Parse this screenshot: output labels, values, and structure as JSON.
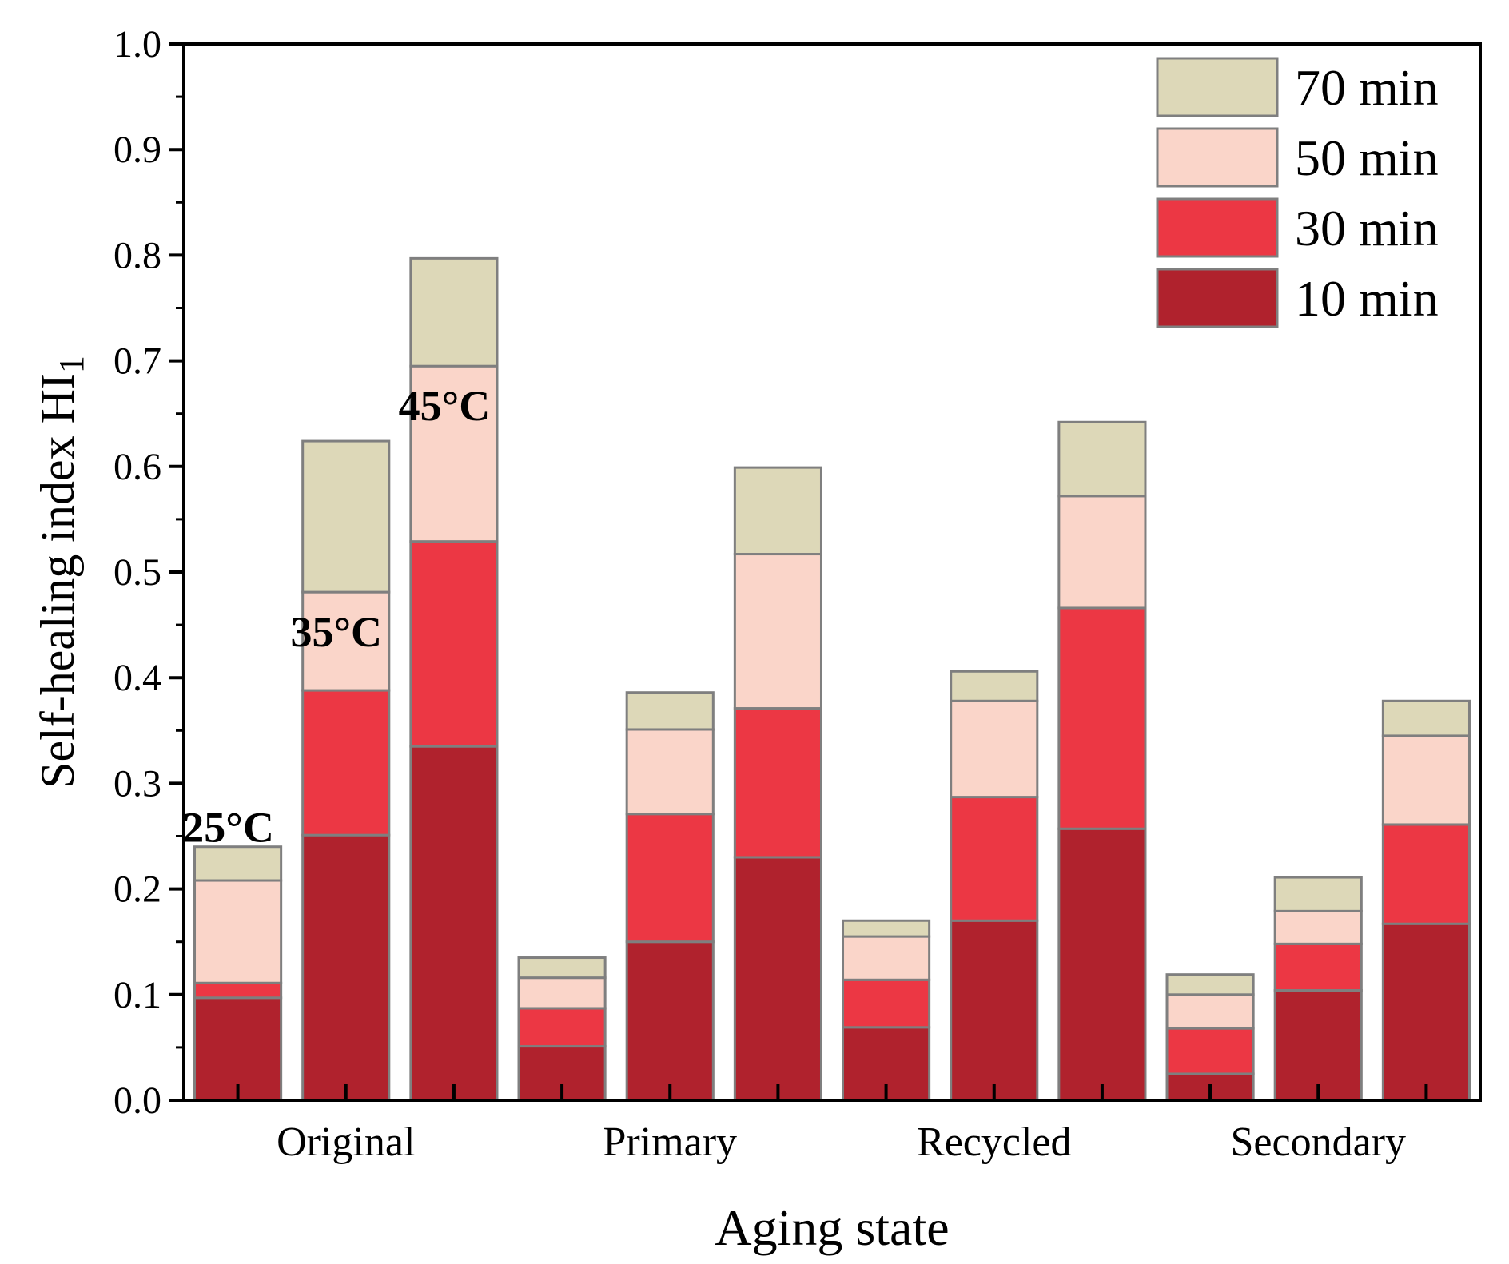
{
  "chart_data": {
    "type": "bar",
    "stacked": true,
    "ylabel": "Self-healing index HI",
    "ylabel_subscript": "1",
    "xlabel": "Aging state",
    "ylim": [
      0,
      1.0
    ],
    "yticks": [
      "0.0",
      "0.1",
      "0.2",
      "0.3",
      "0.4",
      "0.5",
      "0.6",
      "0.7",
      "0.8",
      "0.9",
      "1.0"
    ],
    "groups": [
      "Original",
      "Primary",
      "Recycled",
      "Secondary"
    ],
    "bars_per_group": [
      "25°C",
      "35°C",
      "45°C"
    ],
    "temperature_labels": [
      "25°C",
      "35°C",
      "45°C"
    ],
    "legend": [
      "70 min",
      "50 min",
      "30 min",
      "10 min"
    ],
    "colors": {
      "10 min": "#b0222d",
      "30 min": "#ec3744",
      "50 min": "#fad5c9",
      "70 min": "#ddd8b8",
      "edge": "#7f7f7f"
    },
    "bars": [
      {
        "group": "Original",
        "temp": "25°C",
        "cumulative": [
          0.097,
          0.111,
          0.208,
          0.24
        ]
      },
      {
        "group": "Original",
        "temp": "35°C",
        "cumulative": [
          0.251,
          0.388,
          0.481,
          0.624
        ]
      },
      {
        "group": "Original",
        "temp": "45°C",
        "cumulative": [
          0.335,
          0.529,
          0.695,
          0.797
        ]
      },
      {
        "group": "Primary",
        "temp": "25°C",
        "cumulative": [
          0.051,
          0.087,
          0.116,
          0.135
        ]
      },
      {
        "group": "Primary",
        "temp": "35°C",
        "cumulative": [
          0.15,
          0.271,
          0.351,
          0.386
        ]
      },
      {
        "group": "Primary",
        "temp": "45°C",
        "cumulative": [
          0.23,
          0.371,
          0.517,
          0.599
        ]
      },
      {
        "group": "Recycled",
        "temp": "25°C",
        "cumulative": [
          0.069,
          0.114,
          0.155,
          0.17
        ]
      },
      {
        "group": "Recycled",
        "temp": "35°C",
        "cumulative": [
          0.17,
          0.287,
          0.378,
          0.406
        ]
      },
      {
        "group": "Recycled",
        "temp": "45°C",
        "cumulative": [
          0.257,
          0.466,
          0.572,
          0.642
        ]
      },
      {
        "group": "Secondary",
        "temp": "25°C",
        "cumulative": [
          0.025,
          0.068,
          0.1,
          0.119
        ]
      },
      {
        "group": "Secondary",
        "temp": "35°C",
        "cumulative": [
          0.104,
          0.148,
          0.179,
          0.211
        ]
      },
      {
        "group": "Secondary",
        "temp": "45°C",
        "cumulative": [
          0.167,
          0.261,
          0.345,
          0.378
        ]
      }
    ]
  }
}
